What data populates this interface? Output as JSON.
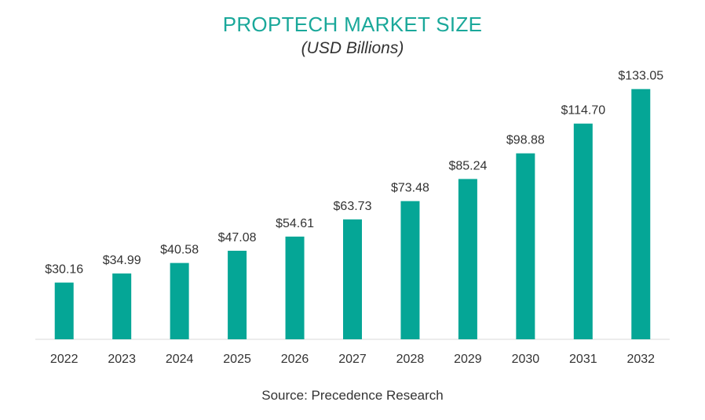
{
  "title": "PROPTECH MARKET SIZE",
  "subtitle": "(USD Billions)",
  "source": "Source: Precedence Research",
  "colors": {
    "bar": "#05a696",
    "title": "#1aa89a",
    "axis": "#d9d9d9",
    "text": "#333333"
  },
  "chart_data": {
    "type": "bar",
    "categories": [
      "2022",
      "2023",
      "2024",
      "2025",
      "2026",
      "2027",
      "2028",
      "2029",
      "2030",
      "2031",
      "2032"
    ],
    "values": [
      30.16,
      34.99,
      40.58,
      47.08,
      54.61,
      63.73,
      73.48,
      85.24,
      98.88,
      114.7,
      133.05
    ],
    "data_labels": [
      "$30.16",
      "$34.99",
      "$40.58",
      "$47.08",
      "$54.61",
      "$63.73",
      "$73.48",
      "$85.24",
      "$98.88",
      "$114.70",
      "$133.05"
    ],
    "title": "PROPTECH MARKET SIZE",
    "subtitle": "(USD Billions)",
    "xlabel": "",
    "ylabel": "",
    "ylim": [
      0,
      140
    ],
    "grid": false,
    "legend": "none"
  }
}
